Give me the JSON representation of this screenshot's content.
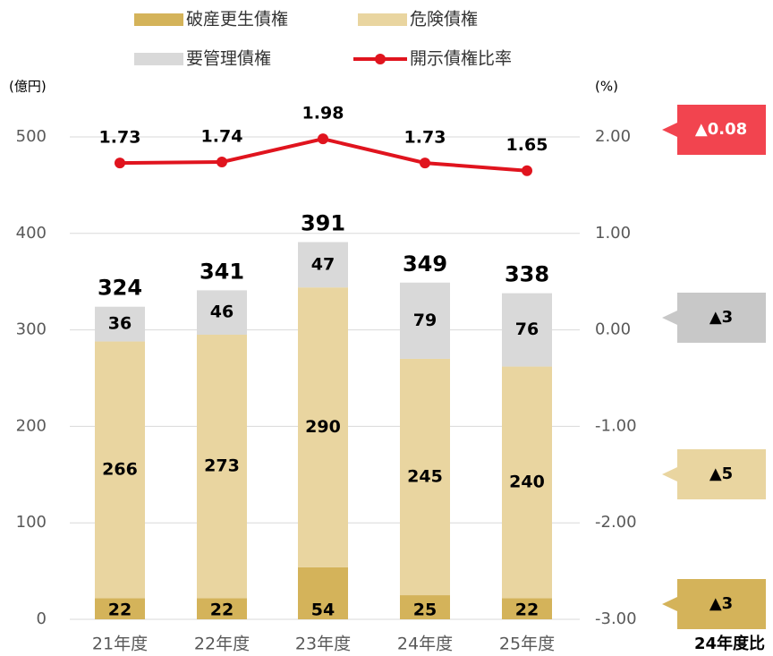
{
  "chart_data": {
    "type": "bar",
    "categories": [
      "21年度",
      "22年度",
      "23年度",
      "24年度",
      "25年度"
    ],
    "series": [
      {
        "name": "破産更生債権",
        "color": "#d4b35a",
        "values": [
          22,
          22,
          54,
          25,
          22
        ]
      },
      {
        "name": "危険債権",
        "color": "#e9d5a0",
        "values": [
          266,
          273,
          290,
          245,
          240
        ]
      },
      {
        "name": "要管理債権",
        "color": "#d9d9d9",
        "values": [
          36,
          46,
          47,
          79,
          76
        ]
      },
      {
        "name": "開示債権比率",
        "type": "line",
        "axis": "y2",
        "color": "#e0141e",
        "values": [
          1.73,
          1.74,
          1.98,
          1.73,
          1.65
        ]
      }
    ],
    "totals": [
      324,
      341,
      391,
      349,
      338
    ],
    "y_label": "(億円)",
    "y2_label": "(%)",
    "ylim": [
      0,
      500
    ],
    "yticks": [
      0,
      100,
      200,
      300,
      400,
      500
    ],
    "y2lim": [
      -3,
      2
    ],
    "y2ticks": [
      {
        "value": -3,
        "label": "-3.00"
      },
      {
        "value": -2,
        "label": "-2.00"
      },
      {
        "value": -1,
        "label": "-1.00"
      },
      {
        "value": 0,
        "label": "0.00"
      },
      {
        "value": 1,
        "label": "1.00"
      },
      {
        "value": 2,
        "label": "2.00"
      }
    ],
    "grid": true,
    "annotations": [
      {
        "text": "▲0.08",
        "color": "#f2444f",
        "text_color": "#ffffff"
      },
      {
        "text": "▲3",
        "color": "#c8c8c8",
        "text_color": "#000000"
      },
      {
        "text": "▲5",
        "color": "#e9d5a0",
        "text_color": "#000000"
      },
      {
        "text": "▲3",
        "color": "#d4b35a",
        "text_color": "#000000"
      }
    ],
    "footnote": "24年度比"
  }
}
